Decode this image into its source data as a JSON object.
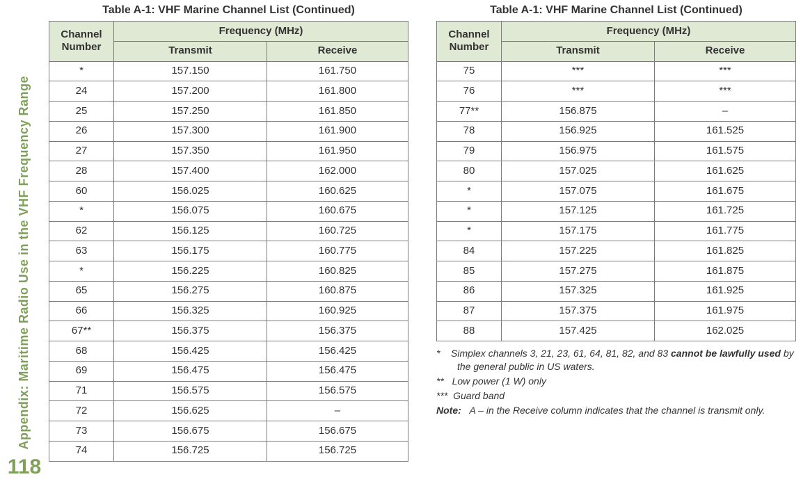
{
  "side_label": "Appendix: Maritime Radio Use in the VHF Frequency Range",
  "page_number": "118",
  "table_title": "Table A-1: VHF Marine Channel List (Continued)",
  "headers": {
    "channel": "Channel Number",
    "freq": "Frequency (MHz)",
    "transmit": "Transmit",
    "receive": "Receive"
  },
  "left_rows": [
    [
      "*",
      "157.150",
      "161.750"
    ],
    [
      "24",
      "157.200",
      "161.800"
    ],
    [
      "25",
      "157.250",
      "161.850"
    ],
    [
      "26",
      "157.300",
      "161.900"
    ],
    [
      "27",
      "157.350",
      "161.950"
    ],
    [
      "28",
      "157.400",
      "162.000"
    ],
    [
      "60",
      "156.025",
      "160.625"
    ],
    [
      "*",
      "156.075",
      "160.675"
    ],
    [
      "62",
      "156.125",
      "160.725"
    ],
    [
      "63",
      "156.175",
      "160.775"
    ],
    [
      "*",
      "156.225",
      "160.825"
    ],
    [
      "65",
      "156.275",
      "160.875"
    ],
    [
      "66",
      "156.325",
      "160.925"
    ],
    [
      "67**",
      "156.375",
      "156.375"
    ],
    [
      "68",
      "156.425",
      "156.425"
    ],
    [
      "69",
      "156.475",
      "156.475"
    ],
    [
      "71",
      "156.575",
      "156.575"
    ],
    [
      "72",
      "156.625",
      "–"
    ],
    [
      "73",
      "156.675",
      "156.675"
    ],
    [
      "74",
      "156.725",
      "156.725"
    ]
  ],
  "right_rows": [
    [
      "75",
      "***",
      "***"
    ],
    [
      "76",
      "***",
      "***"
    ],
    [
      "77**",
      "156.875",
      "–"
    ],
    [
      "78",
      "156.925",
      "161.525"
    ],
    [
      "79",
      "156.975",
      "161.575"
    ],
    [
      "80",
      "157.025",
      "161.625"
    ],
    [
      "*",
      "157.075",
      "161.675"
    ],
    [
      "*",
      "157.125",
      "161.725"
    ],
    [
      "*",
      "157.175",
      "161.775"
    ],
    [
      "84",
      "157.225",
      "161.825"
    ],
    [
      "85",
      "157.275",
      "161.875"
    ],
    [
      "86",
      "157.325",
      "161.925"
    ],
    [
      "87",
      "157.375",
      "161.975"
    ],
    [
      "88",
      "157.425",
      "162.025"
    ]
  ],
  "notes": {
    "n1_pre": "*    Simplex channels 3, 21, 23, 61, 64, 81, 82, and 83 ",
    "n1_bold": "cannot be lawfully used",
    "n1_post": " by the general public in US waters.",
    "n2": "**   Low power (1 W) only",
    "n3": "***  Guard band",
    "note_label": "Note:",
    "note_text": "   A – in the Receive column indicates that the channel is transmit only."
  }
}
